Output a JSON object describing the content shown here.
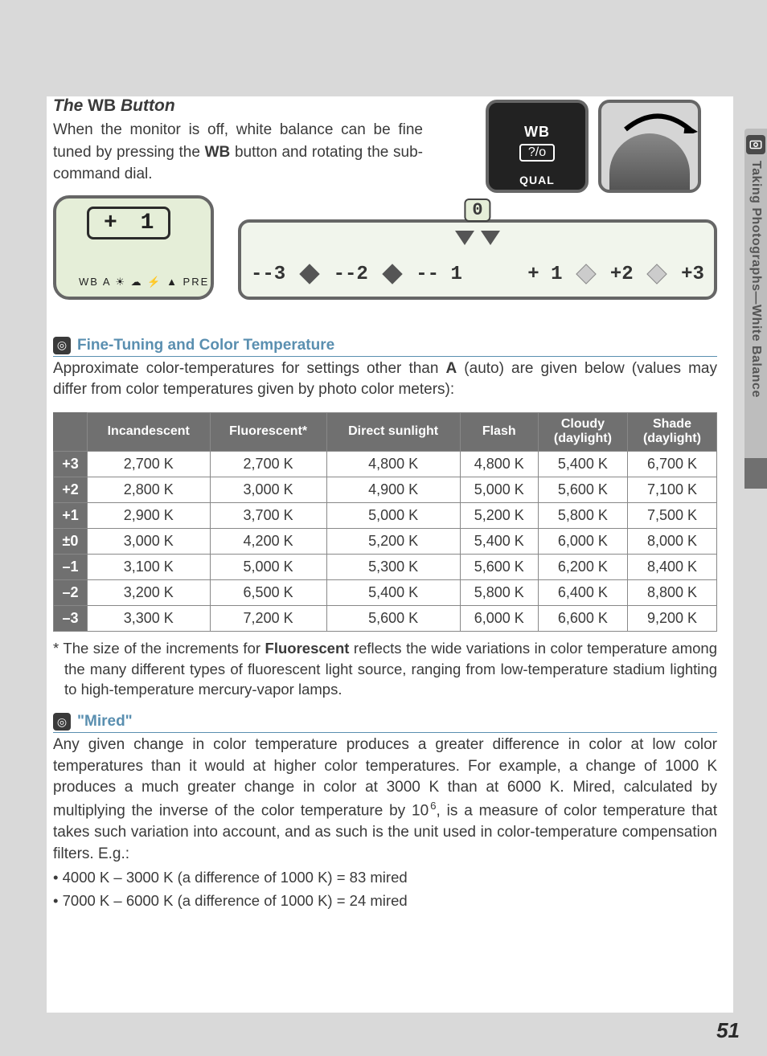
{
  "sideLabel": "Taking Photographs—White Balance",
  "title_pre": "The ",
  "title_wb": "WB",
  "title_post": " Button",
  "intro_1": "When the monitor is off, white balance can be fine tuned by pressing the ",
  "intro_wb": "WB",
  "intro_2": " button and rotating the sub-command dial.",
  "illus": {
    "wb": "WB",
    "sub": "?/o",
    "qual": "QUAL"
  },
  "lcd_val": "+ 1",
  "lcd_icons": "WB A ☀ ☁ ⚡ ▲ PRE",
  "scale": {
    "zero": "0",
    "vals": [
      "--3",
      "--2",
      "-- 1",
      "+ 1",
      "+2",
      "+3"
    ]
  },
  "sec1_title": "Fine-Tuning and Color Temperature",
  "sec1_para_a": "Approximate color-temperatures for settings other than ",
  "sec1_para_A": "A",
  "sec1_para_b": " (auto) are given below (values may differ from color temperatures given by photo color meters):",
  "table": {
    "headers": [
      "",
      "Incandescent",
      "Fluorescent*",
      "Direct sunlight",
      "Flash",
      "Cloudy (daylight)",
      "Shade (daylight)"
    ],
    "rows": [
      {
        "h": "+3",
        "c": [
          "2,700 K",
          "2,700 K",
          "4,800 K",
          "4,800 K",
          "5,400 K",
          "6,700 K"
        ]
      },
      {
        "h": "+2",
        "c": [
          "2,800 K",
          "3,000 K",
          "4,900 K",
          "5,000 K",
          "5,600 K",
          "7,100 K"
        ]
      },
      {
        "h": "+1",
        "c": [
          "2,900 K",
          "3,700 K",
          "5,000 K",
          "5,200 K",
          "5,800 K",
          "7,500 K"
        ]
      },
      {
        "h": "±0",
        "c": [
          "3,000 K",
          "4,200 K",
          "5,200 K",
          "5,400 K",
          "6,000 K",
          "8,000 K"
        ]
      },
      {
        "h": "–1",
        "c": [
          "3,100 K",
          "5,000 K",
          "5,300 K",
          "5,600 K",
          "6,200 K",
          "8,400 K"
        ]
      },
      {
        "h": "–2",
        "c": [
          "3,200 K",
          "6,500 K",
          "5,400 K",
          "5,800 K",
          "6,400 K",
          "8,800 K"
        ]
      },
      {
        "h": "–3",
        "c": [
          "3,300 K",
          "7,200 K",
          "5,600 K",
          "6,000 K",
          "6,600 K",
          "9,200 K"
        ]
      }
    ]
  },
  "footnote_a": "* The size of the increments for ",
  "footnote_b": "Fluorescent",
  "footnote_c": " reflects the wide variations in color temperature among the many different types of fluorescent light source, ranging from low-temperature stadium lighting to high-temperature mercury-vapor lamps.",
  "sec2_title": "\"Mired\"",
  "sec2_para": "Any given change in color temperature produces a greater difference in color at low color temperatures than it would at higher color temperatures.  For example, a change of 1000 K produces a much greater change in color at 3000 K than at 6000 K.  Mired, calculated by multiplying the inverse of the color temperature by 10",
  "sec2_sup": "6",
  "sec2_para_b": ", is a measure of color temperature that takes such variation into account, and as such is the unit used in color-temperature compensation filters.  E.g.:",
  "bullets": [
    "• 4000 K – 3000 K (a difference of 1000 K) = 83 mired",
    "• 7000 K – 6000 K (a difference of 1000 K) = 24 mired"
  ],
  "pageNum": "51"
}
